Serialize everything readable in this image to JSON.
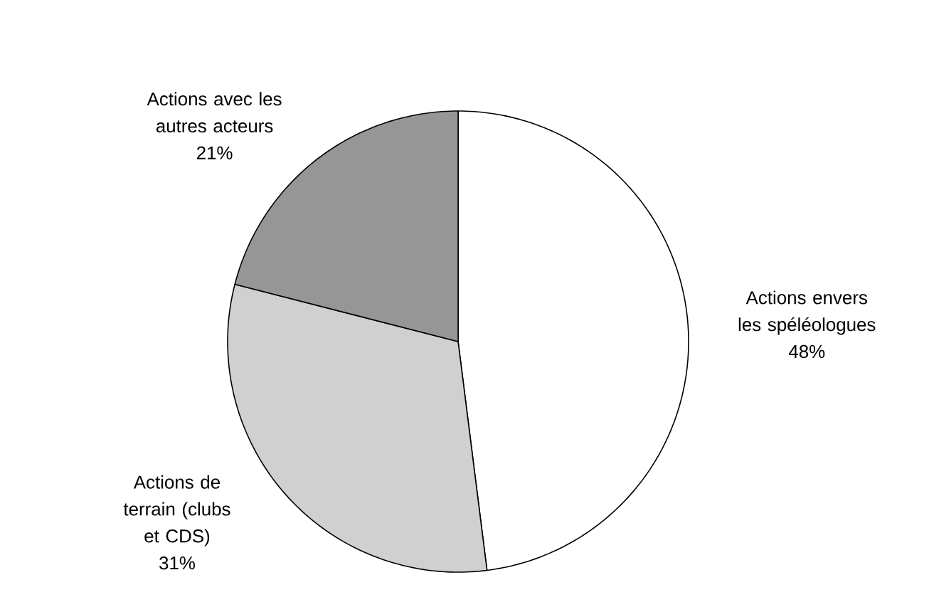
{
  "chart_data": {
    "type": "pie",
    "categories": [
      "Actions envers les spéléologues",
      "Actions de terrain (clubs et CDS)",
      "Actions avec les autres acteurs"
    ],
    "values": [
      48,
      31,
      21
    ],
    "value_labels": [
      "48%",
      "31%",
      "21%"
    ],
    "colors": [
      "#ffffff",
      "#d0d0d0",
      "#969696"
    ]
  }
}
